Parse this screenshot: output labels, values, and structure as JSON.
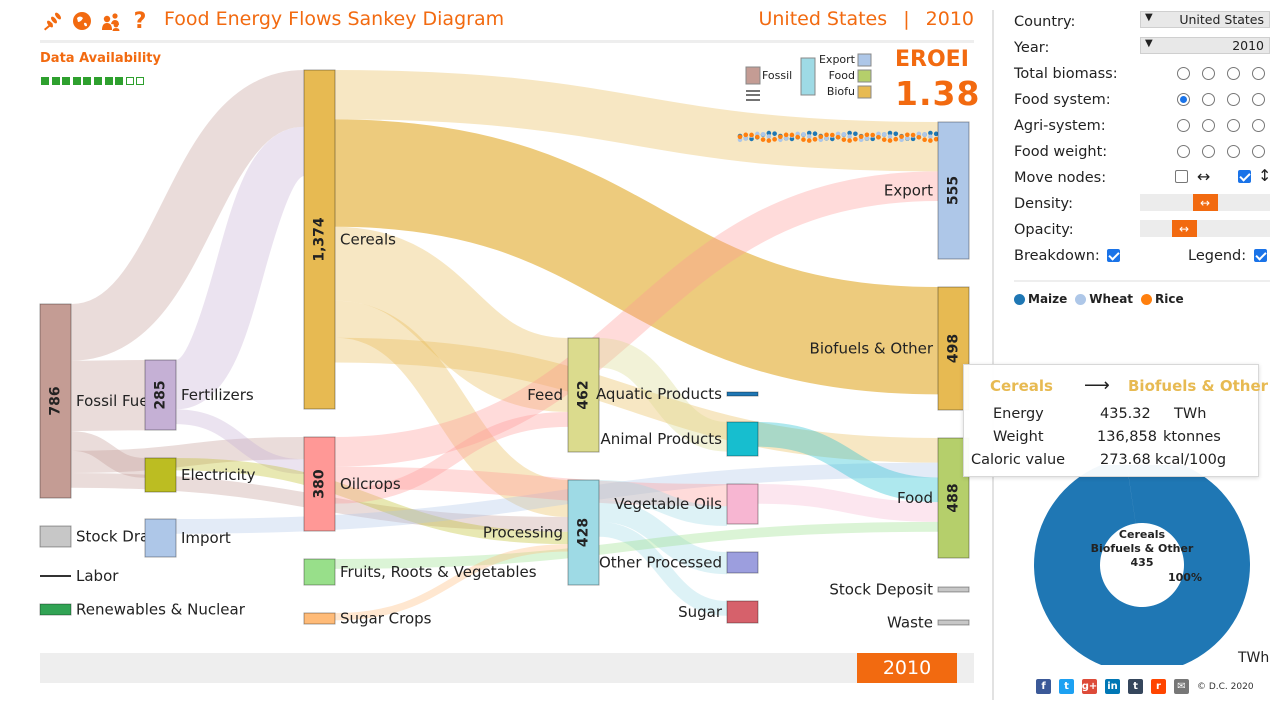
{
  "header": {
    "title": "Food Energy Flows Sankey Diagram",
    "country": "United States",
    "separator": "|",
    "year": "2010",
    "icons": [
      "wheat-icon",
      "globe-icon",
      "people-icon",
      "help-icon"
    ],
    "help_glyph": "?"
  },
  "data_availability": {
    "label": "Data Availability",
    "filled": 8,
    "total": 10,
    "filled_color": "#2ea02e"
  },
  "eroei": {
    "label": "EROEI",
    "value": "1.38"
  },
  "mini_legend": {
    "left_label": "Fossil",
    "right_labels": [
      "Export",
      "Food",
      "Biofu"
    ],
    "right_colors": [
      "#aec7e8",
      "#b5cf6b",
      "#e7ba52"
    ],
    "left_color": "#c49c94",
    "mid_color": "#9edae5"
  },
  "chart_data": {
    "type": "sankey",
    "title": "Food Energy Flows Sankey Diagram",
    "units": "TWh",
    "nodes": [
      {
        "id": "fossil",
        "label": "Fossil Fue",
        "value": 786,
        "value_label": "786",
        "color": "#c49c94"
      },
      {
        "id": "stockdraw",
        "label": "Stock Draw",
        "value": null,
        "value_label": "",
        "color": "#c7c7c7"
      },
      {
        "id": "labor",
        "label": "Labor",
        "value": null,
        "value_label": "",
        "color": "#333333"
      },
      {
        "id": "renew",
        "label": "Renewables & Nuclear",
        "value": null,
        "value_label": "",
        "color": "#31a354"
      },
      {
        "id": "fert",
        "label": "Fertilizers",
        "value": 285,
        "value_label": "285",
        "color": "#c5b0d5"
      },
      {
        "id": "elec",
        "label": "Electricity",
        "value": null,
        "value_label": "",
        "color": "#bcbd22"
      },
      {
        "id": "import",
        "label": "Import",
        "value": null,
        "value_label": "",
        "color": "#aec7e8"
      },
      {
        "id": "cereals",
        "label": "Cereals",
        "value": 1374,
        "value_label": "1,374",
        "color": "#e7ba52"
      },
      {
        "id": "oilcrops",
        "label": "Oilcrops",
        "value": 380,
        "value_label": "380",
        "color": "#ff9896"
      },
      {
        "id": "frv",
        "label": "Fruits, Roots & Vegetables",
        "value": null,
        "value_label": "",
        "color": "#98df8a"
      },
      {
        "id": "sugarcrops",
        "label": "Sugar Crops",
        "value": null,
        "value_label": "",
        "color": "#ffbb78"
      },
      {
        "id": "feed",
        "label": "Feed",
        "value": 462,
        "value_label": "462",
        "color": "#dbdb8d"
      },
      {
        "id": "processing",
        "label": "Processing",
        "value": 428,
        "value_label": "428",
        "color": "#9edae5"
      },
      {
        "id": "aquatic",
        "label": "Aquatic Products",
        "value": null,
        "value_label": "",
        "color": "#1f77b4"
      },
      {
        "id": "animal",
        "label": "Animal Products",
        "value": null,
        "value_label": "",
        "color": "#17becf"
      },
      {
        "id": "vegoil",
        "label": "Vegetable Oils",
        "value": null,
        "value_label": "",
        "color": "#f7b6d2"
      },
      {
        "id": "otherproc",
        "label": "Other Processed",
        "value": null,
        "value_label": "",
        "color": "#9c9ede"
      },
      {
        "id": "sugar",
        "label": "Sugar",
        "value": null,
        "value_label": "",
        "color": "#d6616b"
      },
      {
        "id": "export",
        "label": "Export",
        "value": 555,
        "value_label": "555",
        "color": "#aec7e8"
      },
      {
        "id": "biofuels",
        "label": "Biofuels & Other",
        "value": 498,
        "value_label": "498",
        "color": "#e7ba52"
      },
      {
        "id": "food",
        "label": "Food",
        "value": 488,
        "value_label": "488",
        "color": "#b5cf6b"
      },
      {
        "id": "stockdep",
        "label": "Stock Deposit",
        "value": null,
        "value_label": "",
        "color": "#c7c7c7"
      },
      {
        "id": "waste",
        "label": "Waste",
        "value": null,
        "value_label": "",
        "color": "#c7c7c7"
      }
    ],
    "links": [
      {
        "source": "cereals",
        "target": "export",
        "value": 200
      },
      {
        "source": "cereals",
        "target": "biofuels",
        "value": 435.32
      },
      {
        "source": "cereals",
        "target": "feed",
        "value": 300
      },
      {
        "source": "cereals",
        "target": "processing",
        "value": 150
      },
      {
        "source": "cereals",
        "target": "food",
        "value": 100
      },
      {
        "source": "fossil",
        "target": "cereals",
        "value": 230
      },
      {
        "source": "fossil",
        "target": "fert",
        "value": 285
      },
      {
        "source": "fossil",
        "target": "elec",
        "value": 80
      },
      {
        "source": "fossil",
        "target": "oilcrops",
        "value": 90
      },
      {
        "source": "fossil",
        "target": "processing",
        "value": 60
      },
      {
        "source": "fert",
        "target": "cereals",
        "value": 200
      },
      {
        "source": "fert",
        "target": "oilcrops",
        "value": 60
      },
      {
        "source": "elec",
        "target": "processing",
        "value": 50
      },
      {
        "source": "import",
        "target": "food",
        "value": 60
      },
      {
        "source": "oilcrops",
        "target": "export",
        "value": 120
      },
      {
        "source": "oilcrops",
        "target": "vegoil",
        "value": 90
      },
      {
        "source": "oilcrops",
        "target": "feed",
        "value": 60
      },
      {
        "source": "feed",
        "target": "animal",
        "value": 120
      },
      {
        "source": "processing",
        "target": "vegoil",
        "value": 80
      },
      {
        "source": "processing",
        "target": "otherproc",
        "value": 90
      },
      {
        "source": "processing",
        "target": "sugar",
        "value": 60
      },
      {
        "source": "animal",
        "target": "food",
        "value": 100
      },
      {
        "source": "vegoil",
        "target": "food",
        "value": 80
      },
      {
        "source": "frv",
        "target": "food",
        "value": 40
      },
      {
        "source": "sugarcrops",
        "target": "processing",
        "value": 30
      }
    ],
    "timeline_series": [
      {
        "name": "Maize",
        "color": "#1f77b4"
      },
      {
        "name": "Wheat",
        "color": "#aec7e8"
      },
      {
        "name": "Rice",
        "color": "#ff7f0e"
      }
    ]
  },
  "controls": {
    "country_label": "Country:",
    "country_value": "United States",
    "year_label": "Year:",
    "year_value": "2010",
    "radio_rows": [
      {
        "label": "Total biomass:",
        "selected": -1
      },
      {
        "label": "Food system:",
        "selected": 0
      },
      {
        "label": "Agri-system:",
        "selected": -1
      },
      {
        "label": "Food weight:",
        "selected": -1
      }
    ],
    "move_nodes_label": "Move nodes:",
    "move_nodes_horizontal": false,
    "move_nodes_vertical": true,
    "density_label": "Density:",
    "density_level": 0.5,
    "opacity_label": "Opacity:",
    "opacity_level": 0.3,
    "slider_glyph": "↔",
    "breakdown_label": "Breakdown:",
    "breakdown_checked": true,
    "legend_label": "Legend:",
    "legend_checked": true
  },
  "grain_legend": [
    {
      "name": "Maize",
      "color": "#1f77b4"
    },
    {
      "name": "Wheat",
      "color": "#aec7e8"
    },
    {
      "name": "Rice",
      "color": "#ff7f0e"
    }
  ],
  "tooltip": {
    "source": "Cereals",
    "arrow": "⟶",
    "target": "Biofuels & Other",
    "rows": [
      {
        "label": "Energy",
        "value": "435.32",
        "unit": "TWh"
      },
      {
        "label": "Weight",
        "value": "136,858",
        "unit": "ktonnes"
      },
      {
        "label": "Caloric value",
        "value": "273.68",
        "unit": "kcal/100g"
      }
    ]
  },
  "donut": {
    "line1": "Cereals",
    "line2": "Biofuels & Other",
    "line3": "435",
    "percent_label": "100%",
    "share": 1.0,
    "color": "#1f77b4"
  },
  "units_label": "TWh",
  "timeline": {
    "year": "2010"
  },
  "share_icons": [
    {
      "name": "facebook-icon",
      "glyph": "f",
      "color": "#3b5998"
    },
    {
      "name": "twitter-icon",
      "glyph": "t",
      "color": "#1da1f2"
    },
    {
      "name": "googleplus-icon",
      "glyph": "g+",
      "color": "#dd4b39"
    },
    {
      "name": "linkedin-icon",
      "glyph": "in",
      "color": "#0077b5"
    },
    {
      "name": "tumblr-icon",
      "glyph": "t",
      "color": "#35465c"
    },
    {
      "name": "reddit-icon",
      "glyph": "r",
      "color": "#ff4500"
    },
    {
      "name": "email-icon",
      "glyph": "✉",
      "color": "#777777"
    }
  ],
  "copyright": "© D.C. 2020"
}
